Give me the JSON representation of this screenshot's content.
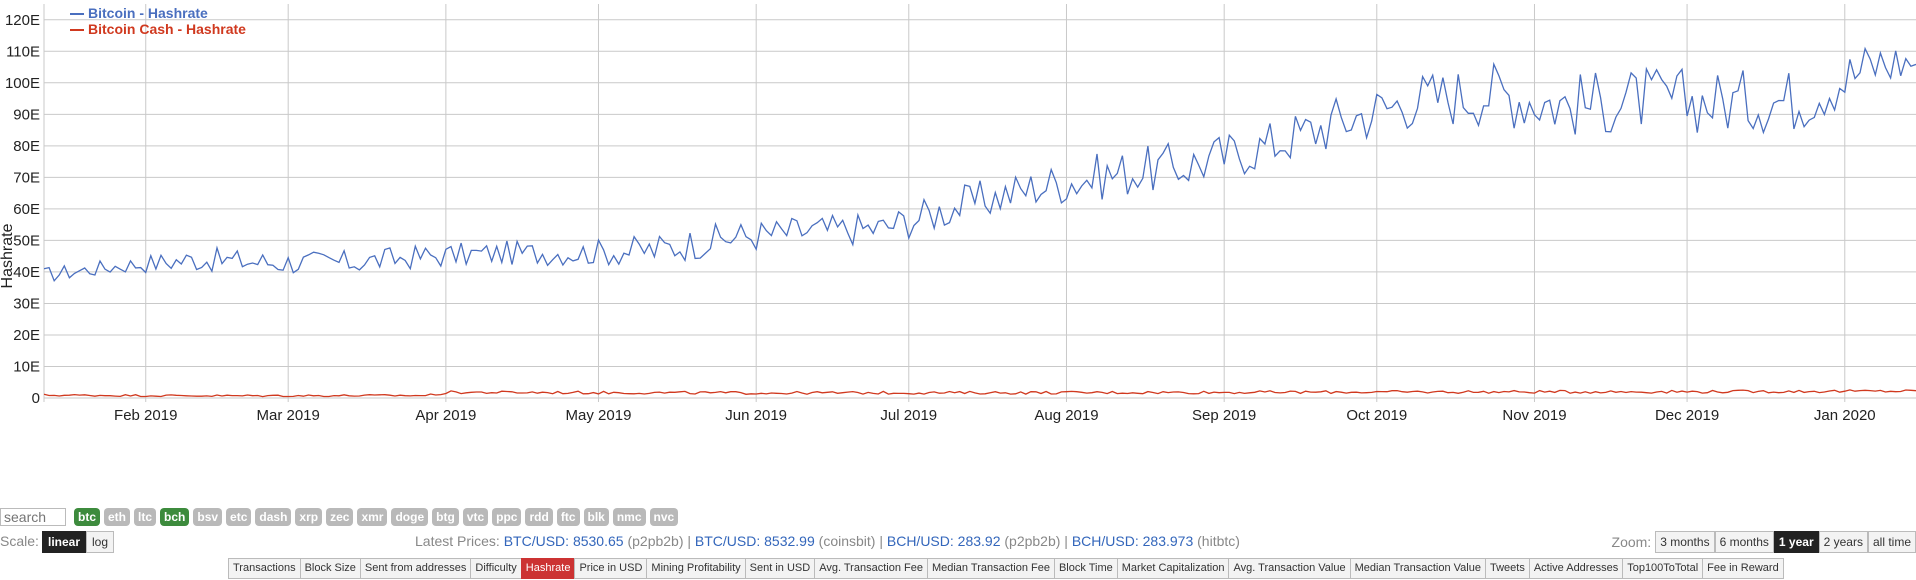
{
  "chart_data": {
    "type": "line",
    "ylabel": "Hashrate",
    "ylim": [
      0,
      125
    ],
    "yticks": [
      {
        "v": 0,
        "label": "0"
      },
      {
        "v": 10,
        "label": "10E"
      },
      {
        "v": 20,
        "label": "20E"
      },
      {
        "v": 30,
        "label": "30E"
      },
      {
        "v": 40,
        "label": "40E"
      },
      {
        "v": 50,
        "label": "50E"
      },
      {
        "v": 60,
        "label": "60E"
      },
      {
        "v": 70,
        "label": "70E"
      },
      {
        "v": 80,
        "label": "80E"
      },
      {
        "v": 90,
        "label": "90E"
      },
      {
        "v": 100,
        "label": "100E"
      },
      {
        "v": 110,
        "label": "110E"
      },
      {
        "v": 120,
        "label": "120E"
      }
    ],
    "xrange": [
      "2019-01-12",
      "2020-01-15"
    ],
    "xticks": [
      {
        "date": "2019-02-01",
        "label": "Feb 2019"
      },
      {
        "date": "2019-03-01",
        "label": "Mar 2019"
      },
      {
        "date": "2019-04-01",
        "label": "Apr 2019"
      },
      {
        "date": "2019-05-01",
        "label": "May 2019"
      },
      {
        "date": "2019-06-01",
        "label": "Jun 2019"
      },
      {
        "date": "2019-07-01",
        "label": "Jul 2019"
      },
      {
        "date": "2019-08-01",
        "label": "Aug 2019"
      },
      {
        "date": "2019-09-01",
        "label": "Sep 2019"
      },
      {
        "date": "2019-10-01",
        "label": "Oct 2019"
      },
      {
        "date": "2019-11-01",
        "label": "Nov 2019"
      },
      {
        "date": "2019-12-01",
        "label": "Dec 2019"
      },
      {
        "date": "2020-01-01",
        "label": "Jan 2020"
      }
    ],
    "grid": true,
    "legend_position": "top-left",
    "series": [
      {
        "name": "Bitcoin - Hashrate",
        "color": "#4a6fbf",
        "x": [
          "2019-01-12",
          "2019-01-27",
          "2019-02-11",
          "2019-02-26",
          "2019-03-13",
          "2019-03-28",
          "2019-04-12",
          "2019-04-27",
          "2019-05-12",
          "2019-05-27",
          "2019-06-11",
          "2019-06-26",
          "2019-07-11",
          "2019-07-26",
          "2019-08-10",
          "2019-08-25",
          "2019-09-09",
          "2019-09-24",
          "2019-10-09",
          "2019-10-24",
          "2019-11-08",
          "2019-11-23",
          "2019-12-08",
          "2019-12-23",
          "2020-01-07",
          "2020-01-15"
        ],
        "y": [
          39,
          42,
          44,
          43,
          43,
          45,
          46,
          46,
          47,
          51,
          53,
          54,
          61,
          67,
          71,
          74,
          80,
          88,
          95,
          97,
          93,
          95,
          94,
          95,
          106,
          107
        ],
        "amplitude": [
          2,
          2,
          3,
          3,
          3,
          3,
          3,
          3,
          4,
          4,
          4,
          4,
          5,
          5,
          6,
          6,
          6,
          7,
          7,
          8,
          8,
          8,
          8,
          8,
          7,
          5
        ]
      },
      {
        "name": "Bitcoin Cash - Hashrate",
        "color": "#d0391f",
        "x": [
          "2019-01-12",
          "2019-02-15",
          "2019-03-28",
          "2019-04-02",
          "2019-06-01",
          "2019-08-01",
          "2019-10-01",
          "2019-12-01",
          "2020-01-15"
        ],
        "y": [
          0.9,
          0.7,
          0.8,
          1.8,
          1.6,
          1.7,
          1.9,
          2.0,
          2.2
        ],
        "amplitude": [
          0.25,
          0.25,
          0.25,
          0.35,
          0.35,
          0.35,
          0.35,
          0.35,
          0.35
        ]
      }
    ]
  },
  "controls": {
    "search_placeholder": "search",
    "coins": [
      {
        "label": "btc",
        "active": true
      },
      {
        "label": "eth",
        "active": false
      },
      {
        "label": "ltc",
        "active": false
      },
      {
        "label": "bch",
        "active": true
      },
      {
        "label": "bsv",
        "active": false
      },
      {
        "label": "etc",
        "active": false
      },
      {
        "label": "dash",
        "active": false
      },
      {
        "label": "xrp",
        "active": false
      },
      {
        "label": "zec",
        "active": false
      },
      {
        "label": "xmr",
        "active": false
      },
      {
        "label": "doge",
        "active": false
      },
      {
        "label": "btg",
        "active": false
      },
      {
        "label": "vtc",
        "active": false
      },
      {
        "label": "ppc",
        "active": false
      },
      {
        "label": "rdd",
        "active": false
      },
      {
        "label": "ftc",
        "active": false
      },
      {
        "label": "blk",
        "active": false
      },
      {
        "label": "nmc",
        "active": false
      },
      {
        "label": "nvc",
        "active": false
      }
    ],
    "scale_label": "Scale:",
    "scale_options": [
      {
        "label": "linear",
        "active": true
      },
      {
        "label": "log",
        "active": false
      }
    ],
    "prices_label": "Latest Prices:",
    "prices": [
      {
        "pair": "BTC/USD: 8530.65",
        "source": "(p2pb2b)"
      },
      {
        "pair": "BTC/USD: 8532.99",
        "source": "(coinsbit)"
      },
      {
        "pair": "BCH/USD: 283.92",
        "source": "(p2pb2b)"
      },
      {
        "pair": "BCH/USD: 283.973",
        "source": "(hitbtc)"
      }
    ],
    "zoom_label": "Zoom:",
    "zoom_options": [
      {
        "label": "3 months",
        "active": false
      },
      {
        "label": "6 months",
        "active": false
      },
      {
        "label": "1 year",
        "active": true
      },
      {
        "label": "2 years",
        "active": false
      },
      {
        "label": "all time",
        "active": false
      }
    ],
    "metric_tabs": [
      {
        "label": "Transactions",
        "active": false
      },
      {
        "label": "Block Size",
        "active": false
      },
      {
        "label": "Sent from addresses",
        "active": false
      },
      {
        "label": "Difficulty",
        "active": false
      },
      {
        "label": "Hashrate",
        "active": true
      },
      {
        "label": "Price in USD",
        "active": false
      },
      {
        "label": "Mining Profitability",
        "active": false
      },
      {
        "label": "Sent in USD",
        "active": false
      },
      {
        "label": "Avg. Transaction Fee",
        "active": false
      },
      {
        "label": "Median Transaction Fee",
        "active": false
      },
      {
        "label": "Block Time",
        "active": false
      },
      {
        "label": "Market Capitalization",
        "active": false
      },
      {
        "label": "Avg. Transaction Value",
        "active": false
      },
      {
        "label": "Median Transaction Value",
        "active": false
      },
      {
        "label": "Tweets",
        "active": false
      },
      {
        "label": "Active Addresses",
        "active": false
      },
      {
        "label": "Top100ToTotal",
        "active": false
      },
      {
        "label": "Fee in Reward",
        "active": false
      }
    ]
  }
}
